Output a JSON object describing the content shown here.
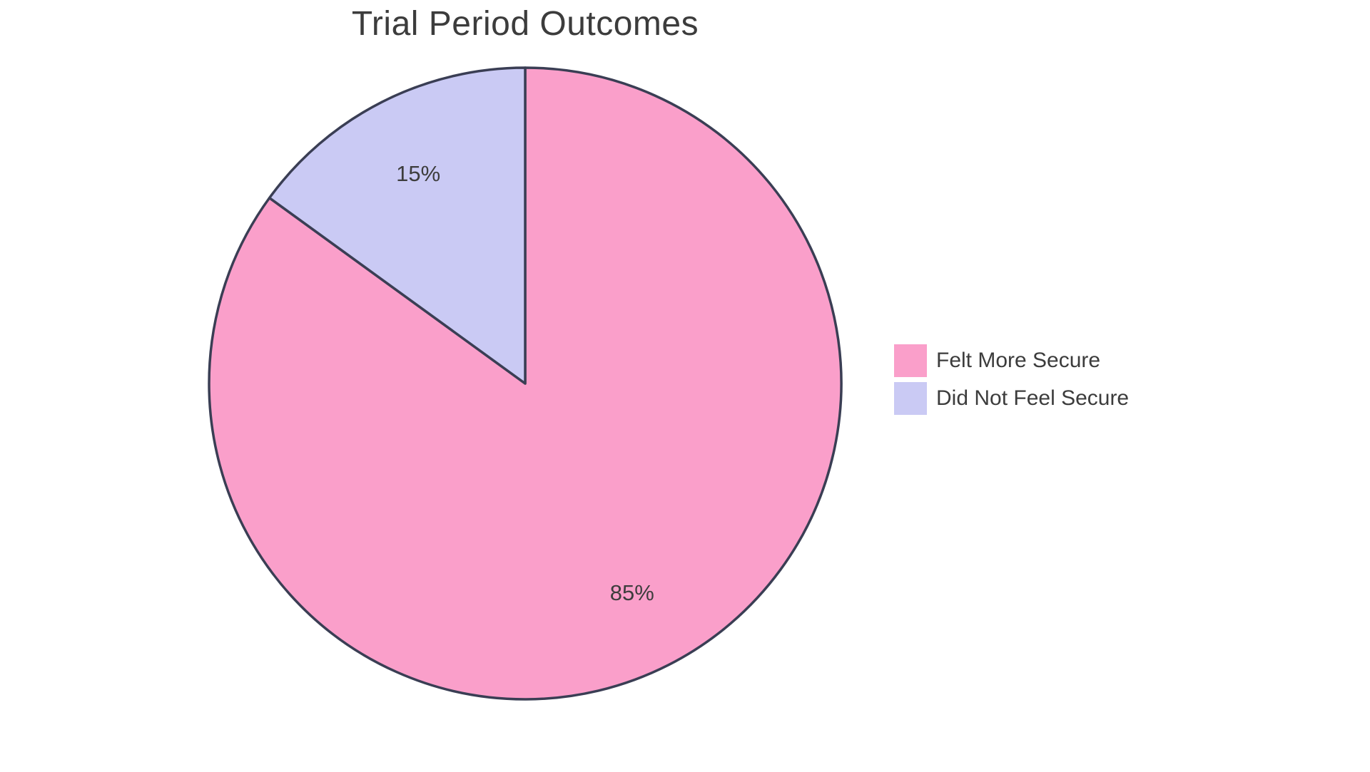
{
  "page": {
    "background_color": "#FFFFFF"
  },
  "chart_data": {
    "type": "pie",
    "title": "Trial Period Outcomes",
    "slices": [
      {
        "label": "Felt More Secure",
        "value": 85,
        "display_label": "85%",
        "color": "#FA9FCA"
      },
      {
        "label": "Did Not Feel Secure",
        "value": 15,
        "display_label": "15%",
        "color": "#CACAF4"
      }
    ],
    "unit": "%",
    "start_angle": "12-oclock",
    "direction": "clockwise",
    "slice_border_color": "#3A3E54",
    "slice_border_width": 3.5,
    "text_color": "#3C3C3C",
    "labels_inside": true,
    "legend_position": "right-middle",
    "grid": false
  }
}
